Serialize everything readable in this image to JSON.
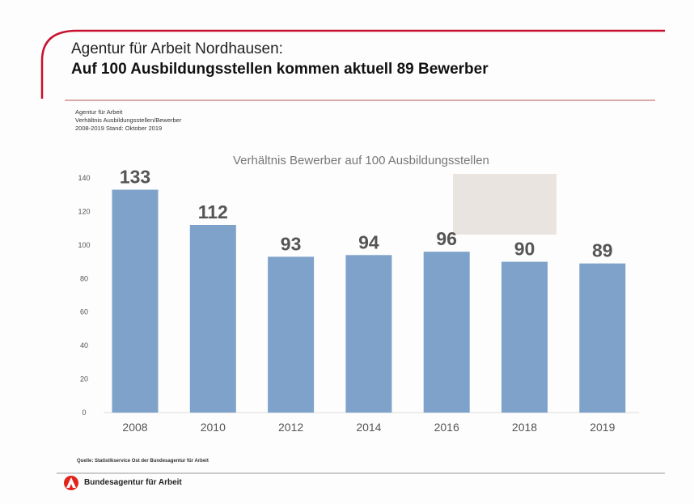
{
  "header": {
    "line1": "Agentur für Arbeit Nordhausen:",
    "line2": "Auf 100 Ausbildungsstellen kommen aktuell 89 Bewerber"
  },
  "meta": [
    "Agentur für Arbeit",
    "Verhältnis Ausbildungsstellen/Bewerber",
    "2008-2019 Stand: Oktober 2019"
  ],
  "footer": {
    "source": "Quelle: Statistikservice Ost der Bundesagentur für Arbeit",
    "brand": "Bundesagentur für Arbeit",
    "brand_color": "#e2231a"
  },
  "chart_data": {
    "type": "bar",
    "title": "Verhältnis Bewerber auf 100 Ausbildungsstellen",
    "categories": [
      "2008",
      "2010",
      "2012",
      "2014",
      "2016",
      "2018",
      "2019"
    ],
    "values": [
      133,
      112,
      93,
      94,
      96,
      90,
      89
    ],
    "ylim": [
      0,
      140
    ],
    "yticks": [
      0,
      20,
      40,
      60,
      80,
      100,
      120,
      140
    ],
    "grid": false,
    "bar_color": "#7ea2c9",
    "xlabel": "",
    "ylabel": ""
  }
}
